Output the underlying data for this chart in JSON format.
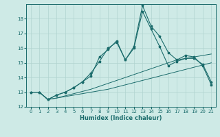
{
  "xlabel": "Humidex (Indice chaleur)",
  "ylabel": "",
  "background_color": "#ceeae6",
  "grid_color": "#b0d4d0",
  "line_color": "#1a6b6b",
  "xlim": [
    -0.5,
    21.5
  ],
  "ylim": [
    12,
    19
  ],
  "yticks": [
    12,
    13,
    14,
    15,
    16,
    17,
    18
  ],
  "xticks": [
    0,
    1,
    2,
    3,
    4,
    5,
    6,
    7,
    8,
    9,
    10,
    11,
    12,
    13,
    14,
    15,
    16,
    17,
    18,
    19,
    20,
    21
  ],
  "series1_y": [
    13.0,
    13.0,
    12.5,
    12.6,
    12.7,
    12.8,
    12.9,
    13.0,
    13.1,
    13.2,
    13.35,
    13.5,
    13.65,
    13.8,
    13.95,
    14.1,
    14.25,
    14.4,
    14.55,
    14.7,
    14.85,
    15.0
  ],
  "series2_y": [
    13.0,
    13.0,
    12.5,
    12.6,
    12.75,
    12.9,
    13.05,
    13.2,
    13.4,
    13.6,
    13.8,
    14.0,
    14.2,
    14.4,
    14.6,
    14.8,
    15.0,
    15.2,
    15.3,
    15.4,
    15.5,
    15.6
  ],
  "series3_y": [
    13.0,
    13.0,
    12.5,
    12.8,
    13.0,
    13.3,
    13.7,
    14.1,
    15.4,
    15.9,
    16.5,
    15.2,
    16.1,
    18.9,
    17.5,
    16.8,
    15.7,
    15.2,
    15.5,
    15.4,
    14.8,
    13.5
  ],
  "series4_y": [
    13.0,
    13.0,
    12.5,
    12.8,
    13.0,
    13.3,
    13.7,
    14.3,
    15.1,
    16.0,
    16.4,
    15.2,
    16.0,
    18.5,
    17.3,
    16.1,
    14.8,
    15.1,
    15.3,
    15.3,
    14.9,
    13.7
  ]
}
